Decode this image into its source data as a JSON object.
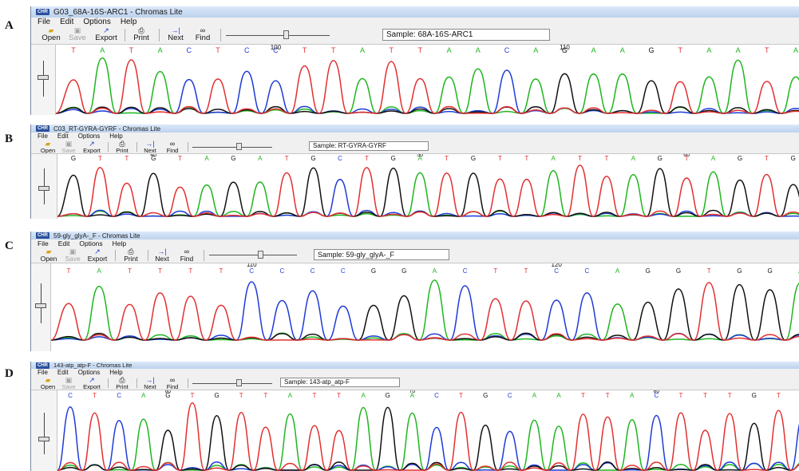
{
  "colors": {
    "A": "#1fb51f",
    "C": "#1f3bd6",
    "G": "#111111",
    "T": "#e23030"
  },
  "panels": [
    {
      "letter": "A",
      "title": "G03_68A-16S-ARC1 - Chromas Lite",
      "menu": [
        "File",
        "Edit",
        "Options",
        "Help"
      ],
      "toolbar": {
        "open": "Open",
        "save": "Save",
        "export": "Export",
        "print": "Print",
        "next": "Next",
        "find": "Find"
      },
      "sample": "Sample: 68A-16S-ARC1",
      "position_labels": [
        {
          "label": "100",
          "base_index": 7
        },
        {
          "label": "110",
          "base_index": 17
        }
      ],
      "bases": [
        "T",
        "A",
        "T",
        "A",
        "C",
        "T",
        "C",
        "C",
        "T",
        "T",
        "A",
        "T",
        "T",
        "A",
        "A",
        "C",
        "A",
        "G",
        "A",
        "A",
        "G",
        "T",
        "A",
        "A",
        "T",
        "A"
      ],
      "zoom_level": 0.55
    },
    {
      "letter": "B",
      "title": "C03_RT-GYRA-GYRF - Chromas Lite",
      "menu": [
        "File",
        "Edit",
        "Options",
        "Help"
      ],
      "toolbar": {
        "open": "Open",
        "save": "Save",
        "export": "Export",
        "print": "Print",
        "next": "Next",
        "find": "Find"
      },
      "sample": "Sample: RT-GYRA-GYRF",
      "position_labels": [
        {
          "label": "40",
          "base_index": 3
        },
        {
          "label": "50",
          "base_index": 13
        },
        {
          "label": "60",
          "base_index": 23
        }
      ],
      "bases": [
        "G",
        "T",
        "T",
        "G",
        "T",
        "A",
        "G",
        "A",
        "T",
        "G",
        "C",
        "T",
        "G",
        "A",
        "T",
        "G",
        "T",
        "T",
        "A",
        "T",
        "T",
        "A",
        "G",
        "T",
        "A",
        "G",
        "T",
        "G"
      ],
      "zoom_level": 0.55
    },
    {
      "letter": "C",
      "title": "59-gly_glyA-_F - Chromas Lite",
      "menu": [
        "File",
        "Edit",
        "Options",
        "Help"
      ],
      "toolbar": {
        "open": "Open",
        "save": "Save",
        "export": "Export",
        "print": "Print",
        "next": "Next",
        "find": "Find"
      },
      "sample": "Sample: 59-gly_glyA-_F",
      "position_labels": [
        {
          "label": "110",
          "base_index": 6
        },
        {
          "label": "120",
          "base_index": 16
        }
      ],
      "bases": [
        "T",
        "A",
        "T",
        "T",
        "T",
        "T",
        "C",
        "C",
        "C",
        "C",
        "G",
        "G",
        "A",
        "C",
        "T",
        "T",
        "C",
        "C",
        "A",
        "G",
        "G",
        "T",
        "G",
        "G",
        "A"
      ],
      "zoom_level": 0.55
    },
    {
      "letter": "D",
      "title": "143-atp_atp-F - Chromas Lite",
      "menu": [
        "File",
        "Edit",
        "Options",
        "Help"
      ],
      "toolbar": {
        "open": "Open",
        "save": "Save",
        "export": "Export",
        "print": "Print",
        "next": "Next",
        "find": "Find"
      },
      "sample": "Sample: 143-atp_atp-F",
      "position_labels": [
        {
          "label": "60",
          "base_index": 4
        },
        {
          "label": "70",
          "base_index": 14
        },
        {
          "label": "80",
          "base_index": 24
        }
      ],
      "bases": [
        "C",
        "T",
        "C",
        "A",
        "G",
        "T",
        "G",
        "T",
        "T",
        "A",
        "T",
        "T",
        "A",
        "G",
        "A",
        "C",
        "T",
        "G",
        "C",
        "A",
        "A",
        "T",
        "T",
        "A",
        "C",
        "T",
        "T",
        "T",
        "G",
        "T",
        "C"
      ],
      "zoom_level": 0.55
    }
  ]
}
